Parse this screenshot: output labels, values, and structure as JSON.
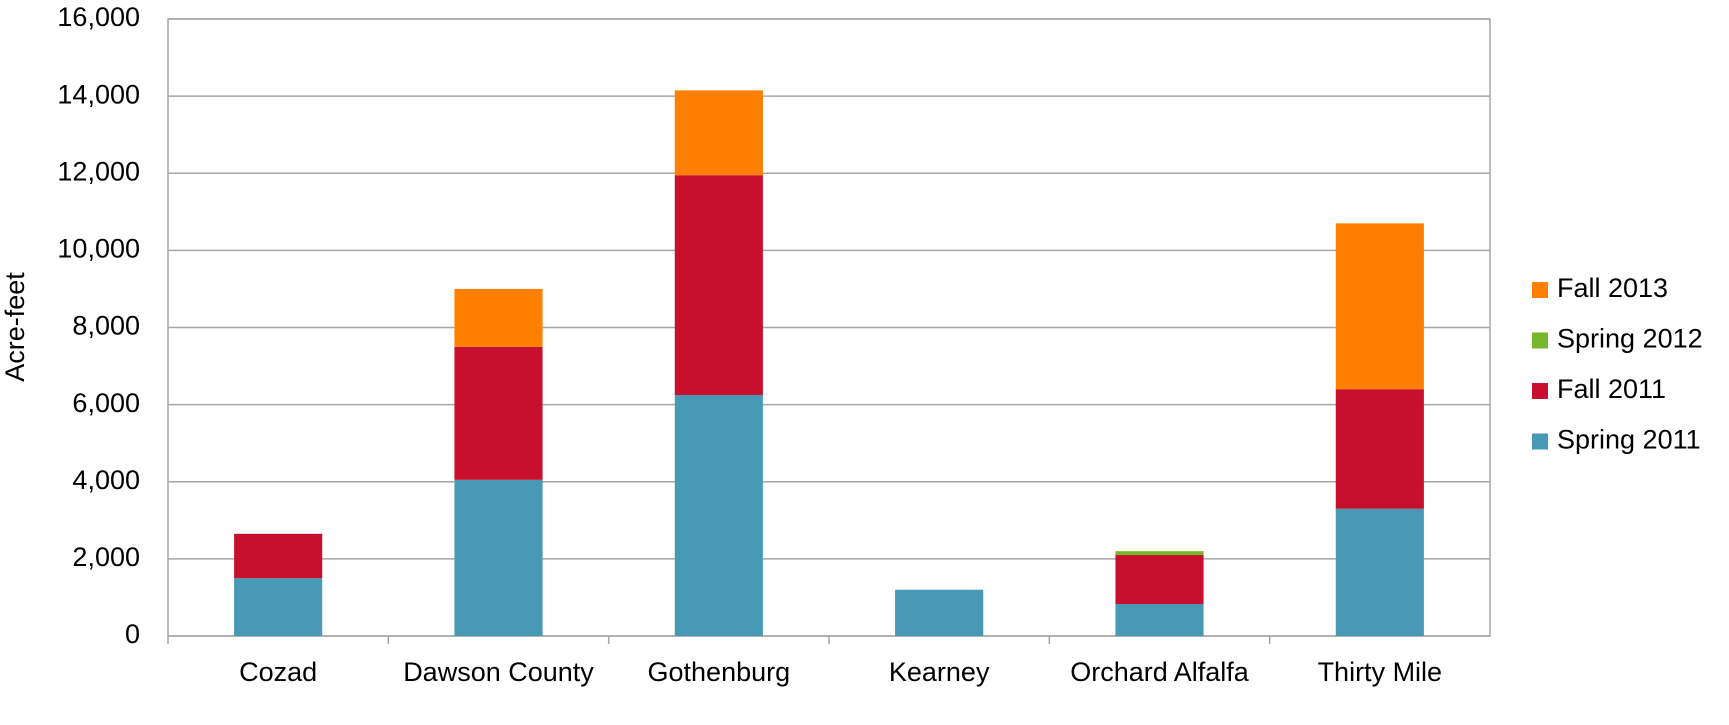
{
  "chart_data": {
    "type": "stacked_bar",
    "y_label": "Acre-feet",
    "categories": [
      "Cozad",
      "Dawson County",
      "Gothenburg",
      "Kearney",
      "Orchard Alfalfa",
      "Thirty Mile"
    ],
    "series": [
      {
        "name": "Spring 2011",
        "color": "#4799b5",
        "values": [
          1500,
          4050,
          6250,
          1200,
          830,
          3300
        ]
      },
      {
        "name": "Fall 2011",
        "color": "#c8102e",
        "values": [
          1150,
          3450,
          5700,
          0,
          1270,
          3100
        ]
      },
      {
        "name": "Spring 2012",
        "color": "#77b72b",
        "values": [
          0,
          0,
          0,
          0,
          100,
          0
        ]
      },
      {
        "name": "Fall 2013",
        "color": "#ff8000",
        "values": [
          0,
          1500,
          2200,
          0,
          0,
          4300
        ]
      }
    ],
    "ylim": [
      0,
      16000
    ],
    "yticks": [
      0,
      {
        "value": 2000,
        "label": "2,000"
      },
      {
        "value": 4000,
        "label": "4,000"
      },
      {
        "value": 6000,
        "label": "6,000"
      },
      {
        "value": 8000,
        "label": "8,000"
      },
      {
        "value": 10000,
        "label": "10,000"
      },
      {
        "value": 12000,
        "label": "12,000"
      },
      {
        "value": 14000,
        "label": "14,000"
      },
      {
        "value": 16000,
        "label": "16,000"
      }
    ],
    "grid": true,
    "legend": "right"
  }
}
